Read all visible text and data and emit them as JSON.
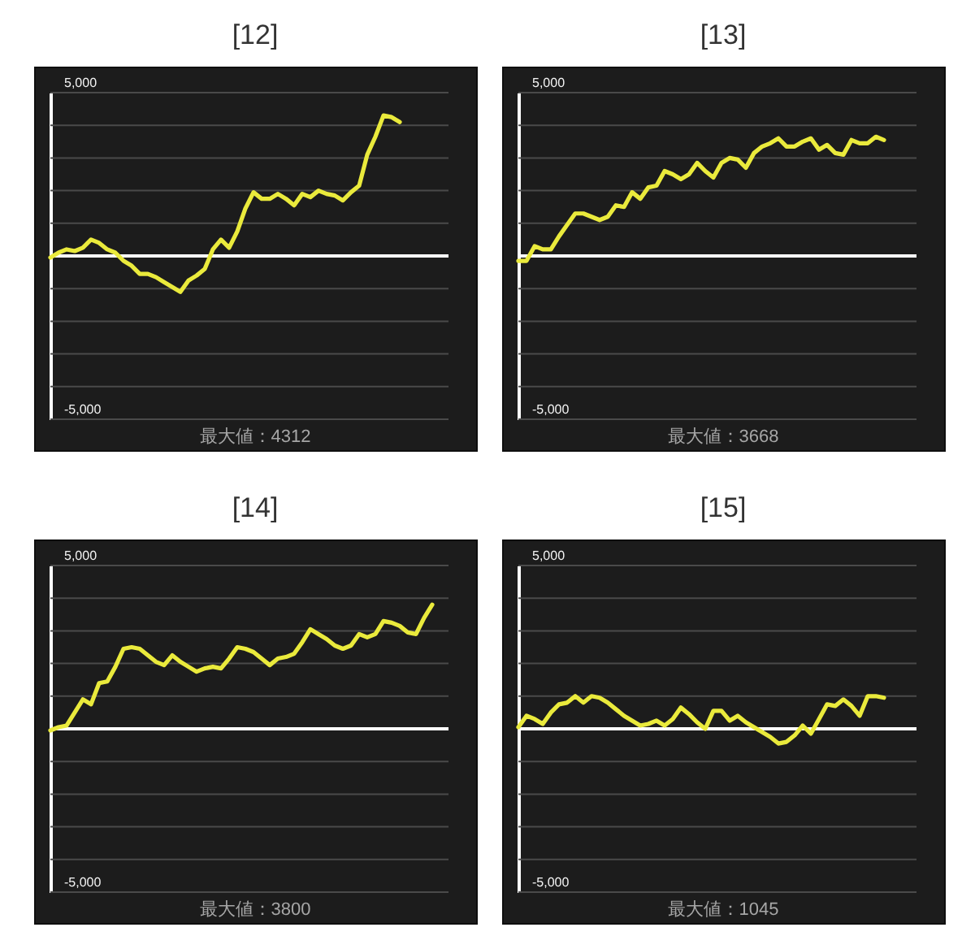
{
  "chart_data": [
    {
      "type": "line",
      "title": "[12]",
      "categories": [
        null,
        null,
        null,
        null,
        null,
        null,
        null,
        null,
        null,
        null,
        null,
        null,
        null,
        null,
        null,
        null,
        null,
        null,
        null,
        null,
        null,
        null,
        null,
        null,
        null,
        null,
        null,
        null,
        null,
        null,
        null,
        null,
        null,
        null,
        null,
        null,
        null,
        null,
        null,
        null,
        null,
        null,
        null,
        null,
        null,
        null,
        null,
        null,
        null,
        null
      ],
      "series": [
        {
          "color": "#eaea3c",
          "values": [
            -50,
            100,
            200,
            150,
            250,
            500,
            400,
            200,
            100,
            -150,
            -300,
            -550,
            -550,
            -650,
            -800,
            -950,
            -1100,
            -750,
            -600,
            -400,
            200,
            500,
            250,
            750,
            1450,
            1950,
            1750,
            1750,
            1900,
            1750,
            1550,
            1900,
            1800,
            2000,
            1900,
            1850,
            1700,
            1950,
            2150,
            3100,
            3650,
            4300,
            4250,
            4100,
            null,
            null,
            null,
            null,
            null,
            null
          ]
        }
      ],
      "ylim": [
        -5000,
        5000
      ],
      "yticks": [
        {
          "value": 5000,
          "label": "5,000"
        },
        {
          "value": 4000,
          "label": null
        },
        {
          "value": 3000,
          "label": null
        },
        {
          "value": 2000,
          "label": null
        },
        {
          "value": 1000,
          "label": null
        },
        {
          "value": 0,
          "label": null
        },
        {
          "value": -1000,
          "label": null
        },
        {
          "value": -2000,
          "label": null
        },
        {
          "value": -3000,
          "label": null
        },
        {
          "value": -4000,
          "label": null
        },
        {
          "value": -5000,
          "label": "-5,000"
        }
      ],
      "grid": "y",
      "tick_labels": "y",
      "ref_lines": [
        {
          "axis": "y",
          "value": 0,
          "color": "#ffffff"
        }
      ],
      "annotations": [
        "最大値：4312"
      ]
    },
    {
      "type": "line",
      "title": "[13]",
      "categories": [
        null,
        null,
        null,
        null,
        null,
        null,
        null,
        null,
        null,
        null,
        null,
        null,
        null,
        null,
        null,
        null,
        null,
        null,
        null,
        null,
        null,
        null,
        null,
        null,
        null,
        null,
        null,
        null,
        null,
        null,
        null,
        null,
        null,
        null,
        null,
        null,
        null,
        null,
        null,
        null,
        null,
        null,
        null,
        null,
        null,
        null,
        null,
        null,
        null,
        null
      ],
      "series": [
        {
          "color": "#eaea3c",
          "values": [
            -150,
            -150,
            300,
            200,
            200,
            600,
            950,
            1300,
            1300,
            1200,
            1100,
            1200,
            1550,
            1500,
            1950,
            1750,
            2100,
            2150,
            2600,
            2500,
            2350,
            2500,
            2850,
            2600,
            2400,
            2850,
            3000,
            2950,
            2700,
            3150,
            3350,
            3450,
            3600,
            3350,
            3350,
            3500,
            3600,
            3250,
            3400,
            3150,
            3100,
            3550,
            3450,
            3450,
            3650,
            3550,
            null,
            null,
            null,
            null
          ]
        }
      ],
      "ylim": [
        -5000,
        5000
      ],
      "yticks": [
        {
          "value": 5000,
          "label": "5,000"
        },
        {
          "value": 4000,
          "label": null
        },
        {
          "value": 3000,
          "label": null
        },
        {
          "value": 2000,
          "label": null
        },
        {
          "value": 1000,
          "label": null
        },
        {
          "value": 0,
          "label": null
        },
        {
          "value": -1000,
          "label": null
        },
        {
          "value": -2000,
          "label": null
        },
        {
          "value": -3000,
          "label": null
        },
        {
          "value": -4000,
          "label": null
        },
        {
          "value": -5000,
          "label": "-5,000"
        }
      ],
      "grid": "y",
      "tick_labels": "y",
      "ref_lines": [
        {
          "axis": "y",
          "value": 0,
          "color": "#ffffff"
        }
      ],
      "annotations": [
        "最大値：3668"
      ]
    },
    {
      "type": "line",
      "title": "[14]",
      "categories": [
        null,
        null,
        null,
        null,
        null,
        null,
        null,
        null,
        null,
        null,
        null,
        null,
        null,
        null,
        null,
        null,
        null,
        null,
        null,
        null,
        null,
        null,
        null,
        null,
        null,
        null,
        null,
        null,
        null,
        null,
        null,
        null,
        null,
        null,
        null,
        null,
        null,
        null,
        null,
        null,
        null,
        null,
        null,
        null,
        null,
        null,
        null,
        null,
        null,
        null
      ],
      "series": [
        {
          "color": "#eaea3c",
          "values": [
            -50,
            50,
            100,
            500,
            900,
            750,
            1400,
            1450,
            1900,
            2450,
            2500,
            2450,
            2250,
            2050,
            1950,
            2250,
            2050,
            1900,
            1750,
            1850,
            1900,
            1850,
            2150,
            2500,
            2450,
            2350,
            2150,
            1950,
            2150,
            2200,
            2300,
            2650,
            3050,
            2900,
            2750,
            2550,
            2450,
            2550,
            2900,
            2800,
            2900,
            3300,
            3250,
            3150,
            2950,
            2900,
            3400,
            3800,
            null,
            null
          ]
        }
      ],
      "ylim": [
        -5000,
        5000
      ],
      "yticks": [
        {
          "value": 5000,
          "label": "5,000"
        },
        {
          "value": 4000,
          "label": null
        },
        {
          "value": 3000,
          "label": null
        },
        {
          "value": 2000,
          "label": null
        },
        {
          "value": 1000,
          "label": null
        },
        {
          "value": 0,
          "label": null
        },
        {
          "value": -1000,
          "label": null
        },
        {
          "value": -2000,
          "label": null
        },
        {
          "value": -3000,
          "label": null
        },
        {
          "value": -4000,
          "label": null
        },
        {
          "value": -5000,
          "label": "-5,000"
        }
      ],
      "grid": "y",
      "tick_labels": "y",
      "ref_lines": [
        {
          "axis": "y",
          "value": 0,
          "color": "#ffffff"
        }
      ],
      "annotations": [
        "最大値：3800"
      ]
    },
    {
      "type": "line",
      "title": "[15]",
      "categories": [
        null,
        null,
        null,
        null,
        null,
        null,
        null,
        null,
        null,
        null,
        null,
        null,
        null,
        null,
        null,
        null,
        null,
        null,
        null,
        null,
        null,
        null,
        null,
        null,
        null,
        null,
        null,
        null,
        null,
        null,
        null,
        null,
        null,
        null,
        null,
        null,
        null,
        null,
        null,
        null,
        null,
        null,
        null,
        null,
        null,
        null,
        null,
        null,
        null,
        null
      ],
      "series": [
        {
          "color": "#eaea3c",
          "values": [
            50,
            400,
            300,
            150,
            500,
            750,
            800,
            1000,
            800,
            1000,
            950,
            800,
            600,
            400,
            250,
            100,
            150,
            250,
            100,
            300,
            650,
            450,
            200,
            0,
            550,
            550,
            250,
            400,
            200,
            50,
            -100,
            -250,
            -450,
            -400,
            -200,
            100,
            -150,
            300,
            750,
            700,
            900,
            700,
            400,
            1000,
            1000,
            950,
            null,
            null,
            null,
            null
          ]
        }
      ],
      "ylim": [
        -5000,
        5000
      ],
      "yticks": [
        {
          "value": 5000,
          "label": "5,000"
        },
        {
          "value": 4000,
          "label": null
        },
        {
          "value": 3000,
          "label": null
        },
        {
          "value": 2000,
          "label": null
        },
        {
          "value": 1000,
          "label": null
        },
        {
          "value": 0,
          "label": null
        },
        {
          "value": -1000,
          "label": null
        },
        {
          "value": -2000,
          "label": null
        },
        {
          "value": -3000,
          "label": null
        },
        {
          "value": -4000,
          "label": null
        },
        {
          "value": -5000,
          "label": "-5,000"
        }
      ],
      "grid": "y",
      "tick_labels": "y",
      "ref_lines": [
        {
          "axis": "y",
          "value": 0,
          "color": "#ffffff"
        }
      ],
      "annotations": [
        "最大値：1045"
      ]
    }
  ]
}
